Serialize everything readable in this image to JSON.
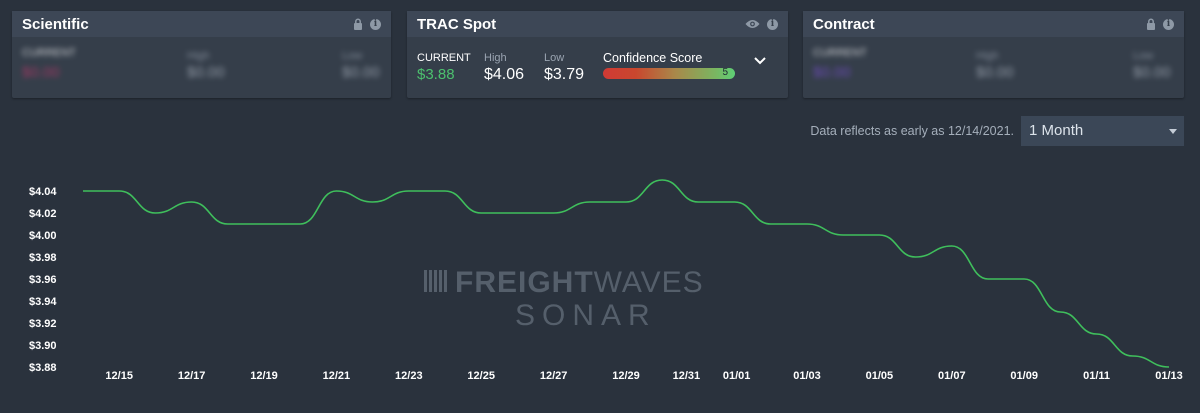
{
  "cards": {
    "scientific": {
      "title": "Scientific",
      "current_label": "CURRENT",
      "current_value": "$0.00",
      "high_label": "High",
      "high_value": "$0.00",
      "low_label": "Low",
      "low_value": "$0.00",
      "icons": [
        "lock-icon",
        "info-icon"
      ]
    },
    "trac_spot": {
      "title": "TRAC Spot",
      "current_label": "CURRENT",
      "current_value": "$3.88",
      "high_label": "High",
      "high_value": "$4.06",
      "low_label": "Low",
      "low_value": "$3.79",
      "confidence_label": "Confidence Score",
      "confidence_value": "5",
      "icons": [
        "eye-icon",
        "info-icon",
        "chevron-down-icon"
      ]
    },
    "contract": {
      "title": "Contract",
      "current_label": "CURRENT",
      "current_value": "$0.00",
      "high_label": "High",
      "high_value": "$0.00",
      "low_label": "Low",
      "low_value": "$0.00",
      "icons": [
        "lock-icon",
        "info-icon"
      ]
    }
  },
  "data_note": "Data reflects as early as 12/14/2021.",
  "range_select": {
    "value": "1 Month"
  },
  "watermark": {
    "line1_bold": "FREIGHT",
    "line1_light": "WAVES",
    "line2": "SONAR"
  },
  "colors": {
    "line": "#3fbf5c",
    "current_green": "#4cc06e",
    "background": "#2a323d"
  },
  "chart_data": {
    "type": "line",
    "title": "",
    "xlabel": "",
    "ylabel": "",
    "ylim": [
      3.88,
      4.05
    ],
    "yticks": [
      "$3.88",
      "$3.90",
      "$3.92",
      "$3.94",
      "$3.96",
      "$3.98",
      "$4.00",
      "$4.02",
      "$4.04"
    ],
    "xticks": [
      "12/15",
      "12/17",
      "12/19",
      "12/21",
      "12/23",
      "12/25",
      "12/27",
      "12/29",
      "12/31",
      "01/01",
      "01/03",
      "01/05",
      "01/07",
      "01/09",
      "01/11",
      "01/13"
    ],
    "grid": false,
    "x": [
      "12/14",
      "12/15",
      "12/16",
      "12/17",
      "12/18",
      "12/19",
      "12/20",
      "12/21",
      "12/22",
      "12/23",
      "12/24",
      "12/25",
      "12/26",
      "12/27",
      "12/28",
      "12/29",
      "12/30",
      "12/31",
      "01/01",
      "01/02",
      "01/03",
      "01/04",
      "01/05",
      "01/06",
      "01/07",
      "01/08",
      "01/09",
      "01/10",
      "01/11",
      "01/12",
      "01/13"
    ],
    "series": [
      {
        "values": [
          4.04,
          4.04,
          4.02,
          4.03,
          4.01,
          4.01,
          4.01,
          4.04,
          4.03,
          4.04,
          4.04,
          4.02,
          4.02,
          4.02,
          4.03,
          4.03,
          4.05,
          4.03,
          4.03,
          4.01,
          4.01,
          4.0,
          4.0,
          3.98,
          3.99,
          3.96,
          3.96,
          3.93,
          3.91,
          3.89,
          3.88
        ]
      }
    ]
  }
}
